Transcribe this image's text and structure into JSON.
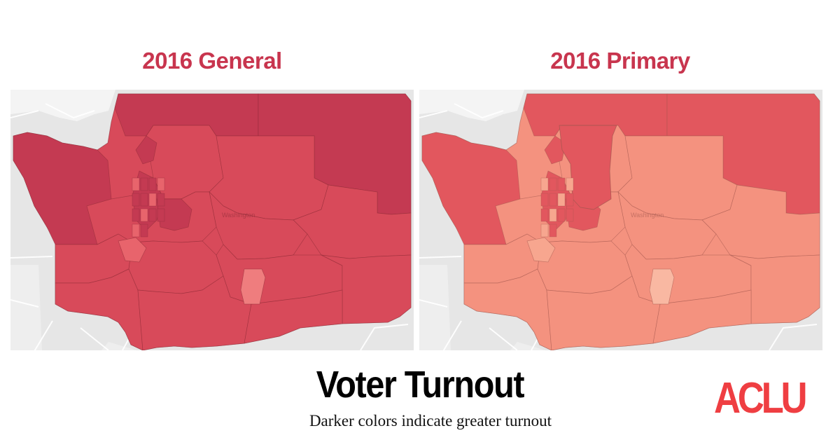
{
  "panels": [
    {
      "title": "2016 General",
      "state_label": "Washington",
      "colors": {
        "base": "#d84a5a",
        "dark": "#c43a52",
        "light": "#e8646c",
        "lightest": "#ef7d7e",
        "border": "#8a2a35"
      }
    },
    {
      "title": "2016 Primary",
      "state_label": "Washington",
      "colors": {
        "base": "#f4927f",
        "dark": "#e2575e",
        "light": "#f7a68f",
        "lightest": "#f9b8a2",
        "border": "#a0564d"
      }
    }
  ],
  "main_title": "Voter Turnout",
  "subtitle": "Darker colors indicate greater turnout",
  "logo_text": "ACLU",
  "accent_color": "#c8354e",
  "logo_color": "#ef3e42",
  "basemap_colors": {
    "land": "#e6e6e6",
    "water": "#f4f4f4",
    "roads": "#ffffff"
  }
}
